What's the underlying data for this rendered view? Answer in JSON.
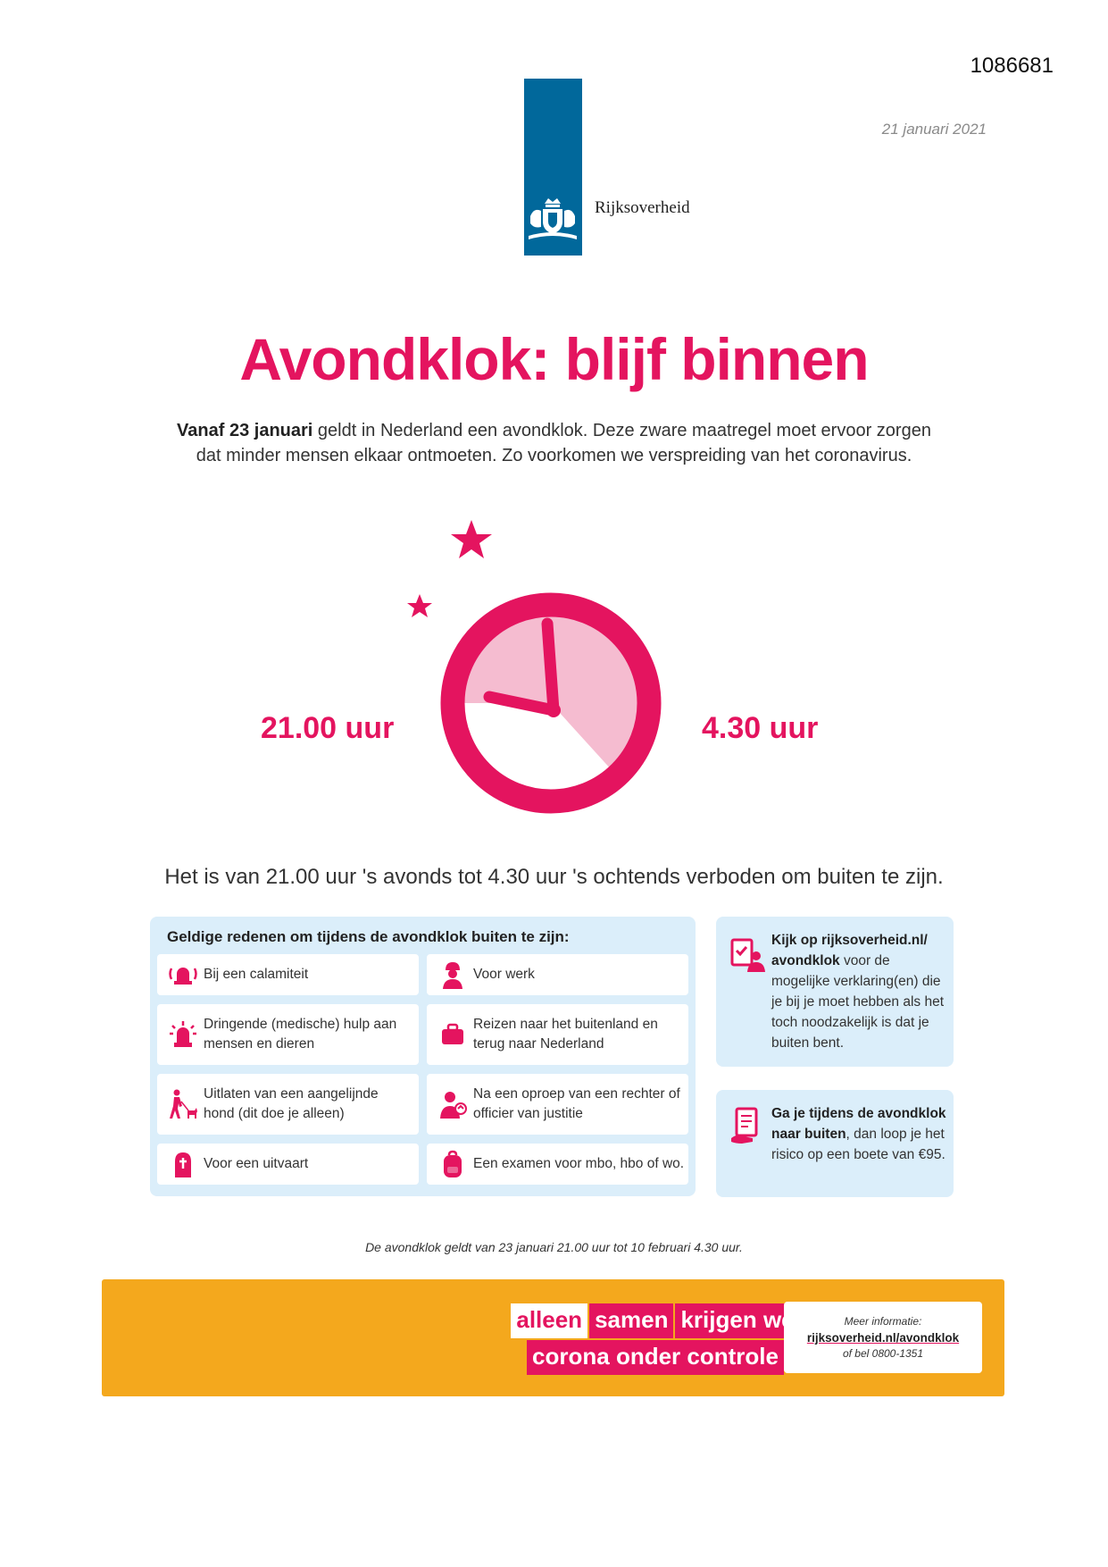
{
  "document_number": "1086681",
  "logo": {
    "text": "Rijksoverheid"
  },
  "date": "21 januari 2021",
  "title": "Avondklok: blijf binnen",
  "intro": {
    "bold": "Vanaf 23 januari",
    "line1_rest": " geldt in Nederland een avondklok. Deze zware maatregel moet ervoor zorgen",
    "line2": "dat minder mensen elkaar ontmoeten. Zo voorkomen we verspreiding van het coronavirus."
  },
  "times": {
    "start": "21.00 uur",
    "end": "4.30 uur"
  },
  "statement": "Het is van 21.00 uur 's avonds tot 4.30 uur 's ochtends verboden om buiten te zijn.",
  "reasons": {
    "title": "Geldige redenen om tijdens de avondklok buiten te zijn:",
    "items": [
      {
        "icon": "alarm-icon",
        "line1": "Bij een calamiteit",
        "line2": ""
      },
      {
        "icon": "worker-icon",
        "line1": "Voor werk",
        "line2": ""
      },
      {
        "icon": "ambulance-light-icon",
        "line1": "Dringende (medische) hulp aan",
        "line2": "mensen en dieren"
      },
      {
        "icon": "suitcase-icon",
        "line1": "Reizen naar het buitenland en",
        "line2": "terug naar Nederland"
      },
      {
        "icon": "dog-walker-icon",
        "line1": "Uitlaten van een aangelijnde",
        "line2": "hond (dit doe je alleen)"
      },
      {
        "icon": "judge-icon",
        "line1": "Na een oproep van een rechter of",
        "line2": "officier van justitie"
      },
      {
        "icon": "funeral-icon",
        "line1": "Voor een uitvaart",
        "line2": ""
      },
      {
        "icon": "backpack-icon",
        "line1": "Een examen voor mbo, hbo of wo.",
        "line2": ""
      }
    ]
  },
  "side1": {
    "icon": "checklist-person-icon",
    "bold": "Kijk op rijksoverheid.nl/ avondklok",
    "rest": " voor de mogelijke verklaring(en) die je bij je moet hebben als het toch noodzakelijk is dat je buiten bent."
  },
  "side2": {
    "icon": "fine-document-icon",
    "bold": "Ga je tijdens de avondklok naar buiten",
    "rest": ", dan loop je het risico op een boete van €95."
  },
  "footnote": "De avondklok geldt van 23 januari 21.00 uur tot 10 februari 4.30 uur.",
  "banner": {
    "slogan_row1": [
      "alleen",
      "samen",
      "krijgen we"
    ],
    "slogan_row2": [
      "corona onder controle"
    ],
    "info_label": "Meer informatie:",
    "info_url": "rijksoverheid.nl/avondklok",
    "info_phone": "of bel 0800-1351"
  },
  "colors": {
    "accent": "#e4145f",
    "accent_light": "#f5bcd0",
    "logo_blue": "#01689b",
    "panel": "#dbeefa",
    "banner": "#f4a81d"
  }
}
